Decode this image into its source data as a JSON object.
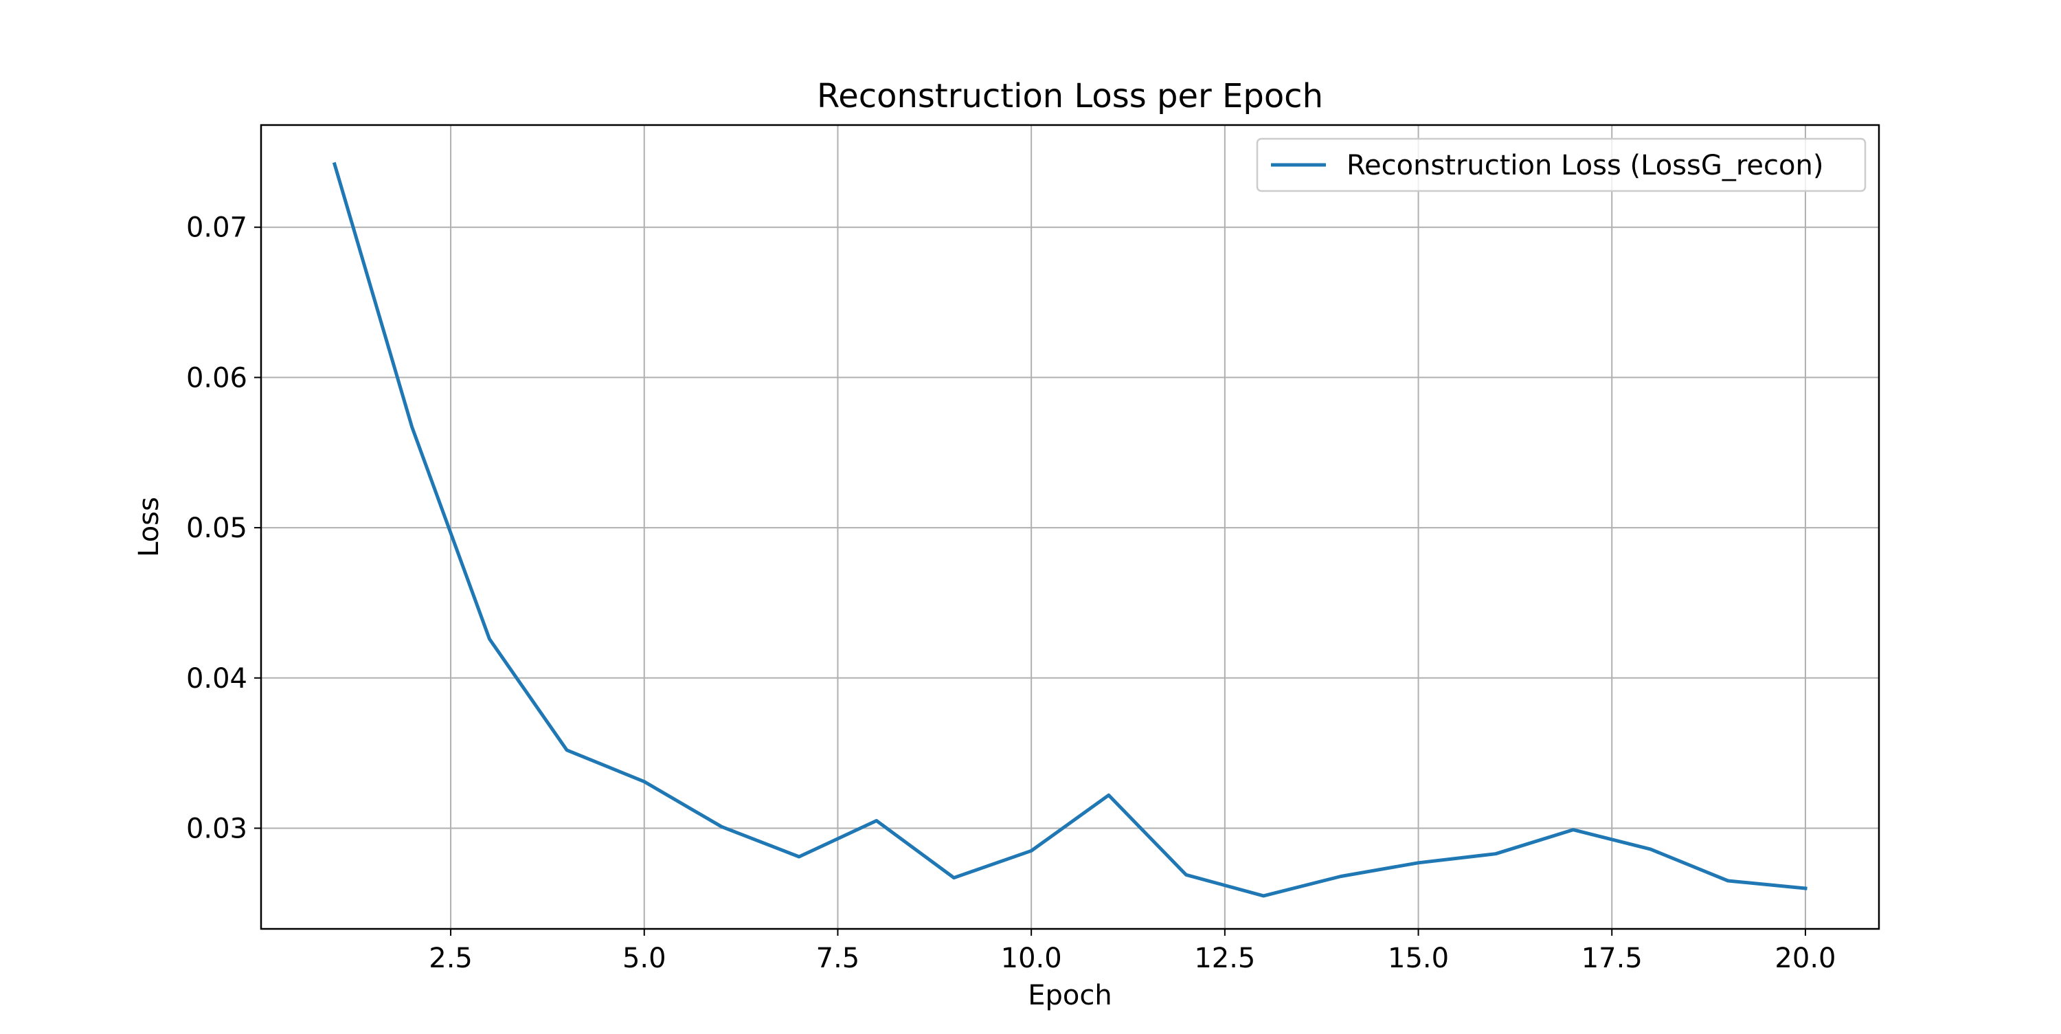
{
  "chart_data": {
    "type": "line",
    "title": "Reconstruction Loss per Epoch",
    "xlabel": "Epoch",
    "ylabel": "Loss",
    "xlim": [
      0.05,
      20.95
    ],
    "ylim": [
      0.0233,
      0.0768
    ],
    "xticks": [
      2.5,
      5.0,
      7.5,
      10.0,
      12.5,
      15.0,
      17.5,
      20.0
    ],
    "xtick_labels": [
      "2.5",
      "5.0",
      "7.5",
      "10.0",
      "12.5",
      "15.0",
      "17.5",
      "20.0"
    ],
    "yticks": [
      0.03,
      0.04,
      0.05,
      0.06,
      0.07
    ],
    "ytick_labels": [
      "0.03",
      "0.04",
      "0.05",
      "0.06",
      "0.07"
    ],
    "grid": true,
    "legend_position": "top-right",
    "series": [
      {
        "name": "Reconstruction Loss (LossG_recon)",
        "color": "#1f77b4",
        "x": [
          1,
          2,
          3,
          4,
          5,
          6,
          7,
          8,
          9,
          10,
          11,
          12,
          13,
          14,
          15,
          16,
          17,
          18,
          19,
          20
        ],
        "values": [
          0.0742,
          0.0567,
          0.0426,
          0.0352,
          0.0331,
          0.0301,
          0.0281,
          0.0305,
          0.0267,
          0.0285,
          0.0322,
          0.0269,
          0.0255,
          0.0268,
          0.0277,
          0.0283,
          0.0299,
          0.0286,
          0.0265,
          0.026
        ]
      }
    ]
  }
}
